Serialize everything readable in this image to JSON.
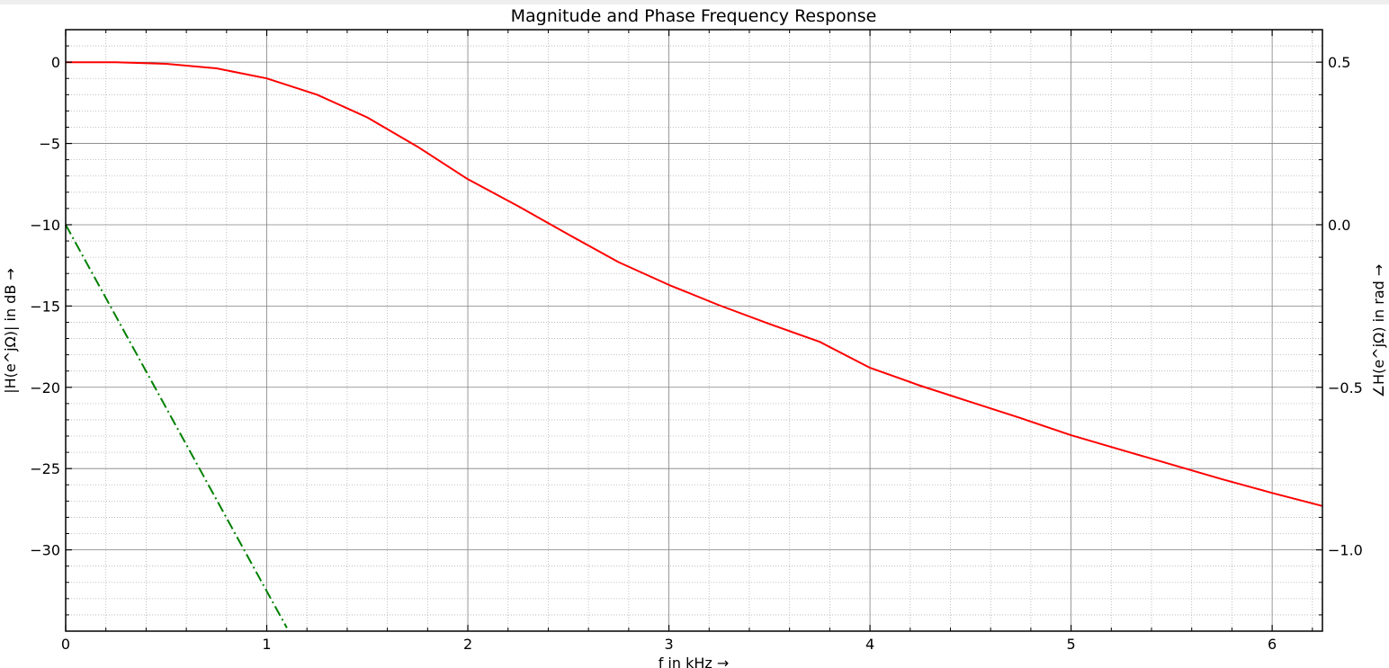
{
  "chart_data": {
    "type": "line",
    "title": "Magnitude and Phase Frequency Response",
    "xlabel": "f in kHz →",
    "ylabel_left": "|H(e^jΩ)| in dB →",
    "ylabel_right": "∠H(e^jΩ) in rad →",
    "xlim": [
      0,
      6.25
    ],
    "ylim_left": [
      -35,
      2
    ],
    "ylim_right": [
      -1.25,
      0.6
    ],
    "x_ticks": [
      0,
      1,
      2,
      3,
      4,
      5,
      6
    ],
    "x_tick_labels": [
      "0",
      "1",
      "2",
      "3",
      "4",
      "5",
      "6"
    ],
    "y_left_ticks": [
      0,
      -5,
      -10,
      -15,
      -20,
      -25,
      -30
    ],
    "y_left_tick_labels": [
      "0",
      "−5",
      "−10",
      "−15",
      "−20",
      "−25",
      "−30"
    ],
    "y_right_ticks": [
      0.5,
      0.0,
      -0.5,
      -1.0
    ],
    "y_right_tick_labels": [
      "0.5",
      "0.0",
      "−0.5",
      "−1.0"
    ],
    "grid": true,
    "minor_grid": true,
    "series": [
      {
        "axis": "left",
        "color": "#ff0000",
        "style": "solid",
        "x": [
          0,
          0.25,
          0.5,
          0.75,
          1.0,
          1.25,
          1.5,
          1.75,
          2.0,
          2.25,
          2.5,
          2.75,
          3.0,
          3.25,
          3.5,
          3.75,
          4.0,
          4.25,
          4.5,
          4.75,
          5.0,
          5.25,
          5.5,
          5.75,
          6.0,
          6.25
        ],
        "y": [
          0,
          -0.01,
          -0.1,
          -0.38,
          -1.0,
          -2.0,
          -3.4,
          -5.2,
          -7.2,
          -8.85,
          -10.6,
          -12.3,
          -13.7,
          -14.95,
          -16.1,
          -17.2,
          -18.8,
          -19.9,
          -20.9,
          -21.9,
          -22.95,
          -23.85,
          -24.75,
          -25.65,
          -26.5,
          -27.3
        ]
      },
      {
        "axis": "right",
        "color": "#008000",
        "style": "dashdot",
        "x": [
          0,
          1.1
        ],
        "y": [
          0.0,
          -1.24
        ]
      }
    ]
  }
}
